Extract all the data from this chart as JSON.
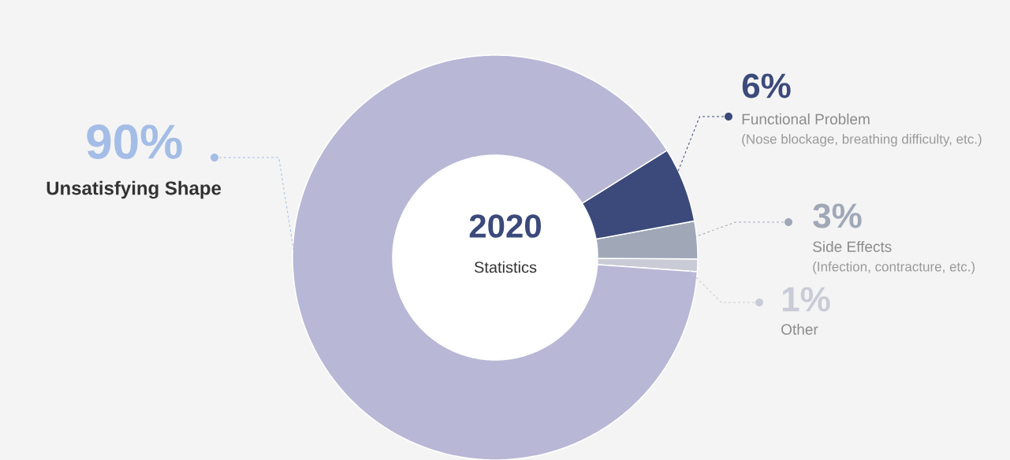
{
  "chart_data": {
    "type": "donut",
    "title": "2020",
    "subtitle": "Statistics",
    "categories": [
      "Other",
      "Side Effects",
      "Functional Problem",
      "Unsatisfying Shape"
    ],
    "values": [
      1,
      3,
      6,
      90
    ],
    "value_labels": [
      "1%",
      "3%",
      "6%",
      "90%"
    ],
    "colors": [
      "#c9ccd6",
      "#a0a8b8",
      "#3b4a7a",
      "#b9b7d6"
    ],
    "annotations": [
      "(Nose blockage, breathing difficulty, etc.)",
      "(Infection, contracture, etc.)"
    ]
  }
}
